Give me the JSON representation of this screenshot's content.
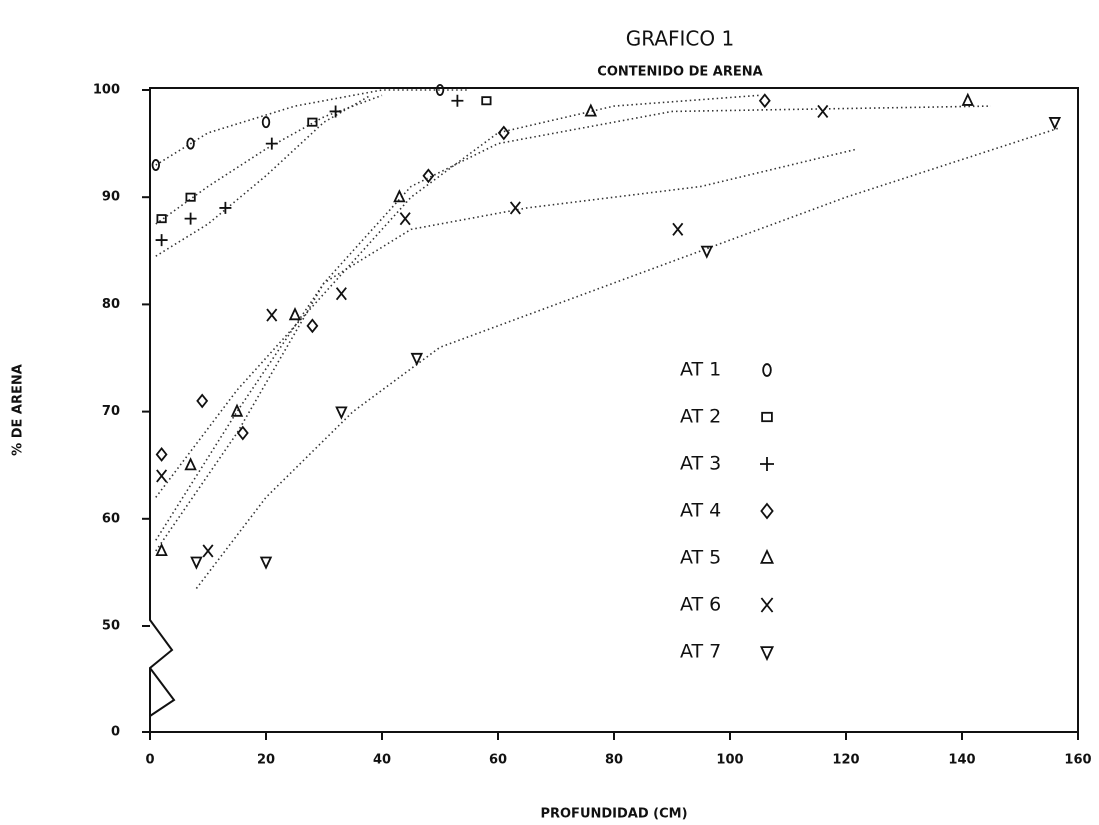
{
  "chart_data": {
    "type": "scatter",
    "title": "GRAFICO 1",
    "subtitle": "CONTENIDO DE ARENA",
    "x_label": "PROFUNDIDAD (CM)",
    "y_label": "% DE ARENA",
    "xlim": [
      0,
      160
    ],
    "xticks": [
      0,
      20,
      40,
      60,
      80,
      100,
      120,
      140,
      160
    ],
    "ylim": [
      0,
      100
    ],
    "yticks": [
      0,
      50,
      60,
      70,
      80,
      90,
      100
    ],
    "y_break": [
      0,
      50
    ],
    "series": [
      {
        "name": "AT 1",
        "marker": "o",
        "x": [
          1,
          7,
          20,
          50
        ],
        "y": [
          93,
          95,
          97,
          100
        ],
        "trend_x": [
          1,
          10,
          25,
          40,
          55
        ],
        "trend_y": [
          93,
          96,
          98.5,
          100,
          100
        ]
      },
      {
        "name": "AT 2",
        "marker": "square",
        "x": [
          2,
          7,
          28,
          58
        ],
        "y": [
          88,
          90,
          97,
          99
        ],
        "trend_x": [
          1,
          10,
          20,
          30,
          40
        ],
        "trend_y": [
          87.5,
          91,
          94.5,
          97.5,
          99.5
        ]
      },
      {
        "name": "AT 3",
        "marker": "plus",
        "x": [
          2,
          7,
          13,
          21,
          32,
          53
        ],
        "y": [
          86,
          88,
          89,
          95,
          98,
          99
        ],
        "trend_x": [
          1,
          10,
          20,
          30,
          38
        ],
        "trend_y": [
          84.5,
          87.5,
          92,
          97,
          99.5
        ]
      },
      {
        "name": "AT 4",
        "marker": "diamond",
        "x": [
          2,
          9,
          16,
          28,
          48,
          61,
          106
        ],
        "y": [
          66,
          71,
          68,
          78,
          92,
          96,
          99
        ],
        "trend_x": [
          1,
          15,
          30,
          45,
          60,
          80,
          105
        ],
        "trend_y": [
          62,
          72,
          81,
          90,
          96,
          98.5,
          99.5
        ]
      },
      {
        "name": "AT 5",
        "marker": "triangle",
        "x": [
          2,
          7,
          15,
          25,
          43,
          76,
          141
        ],
        "y": [
          57,
          65,
          70,
          79,
          90,
          98,
          99
        ],
        "trend_x": [
          1,
          15,
          30,
          45,
          60,
          90,
          145
        ],
        "trend_y": [
          57,
          68,
          82,
          91,
          95,
          98,
          98.5
        ]
      },
      {
        "name": "AT 6",
        "marker": "x",
        "x": [
          2,
          10,
          21,
          33,
          44,
          63,
          91,
          116
        ],
        "y": [
          64,
          57,
          79,
          81,
          88,
          89,
          87,
          98
        ],
        "trend_x": [
          1,
          15,
          30,
          45,
          65,
          95,
          122
        ],
        "trend_y": [
          58,
          70,
          82,
          87,
          89,
          91,
          94.5
        ]
      },
      {
        "name": "AT 7",
        "marker": "triangle-down",
        "x": [
          8,
          20,
          33,
          46,
          96,
          156
        ],
        "y": [
          56,
          56,
          70,
          75,
          85,
          97
        ],
        "trend_x": [
          8,
          20,
          35,
          50,
          80,
          120,
          157
        ],
        "trend_y": [
          53.5,
          62,
          70,
          76,
          82,
          90,
          96.5
        ]
      }
    ]
  }
}
